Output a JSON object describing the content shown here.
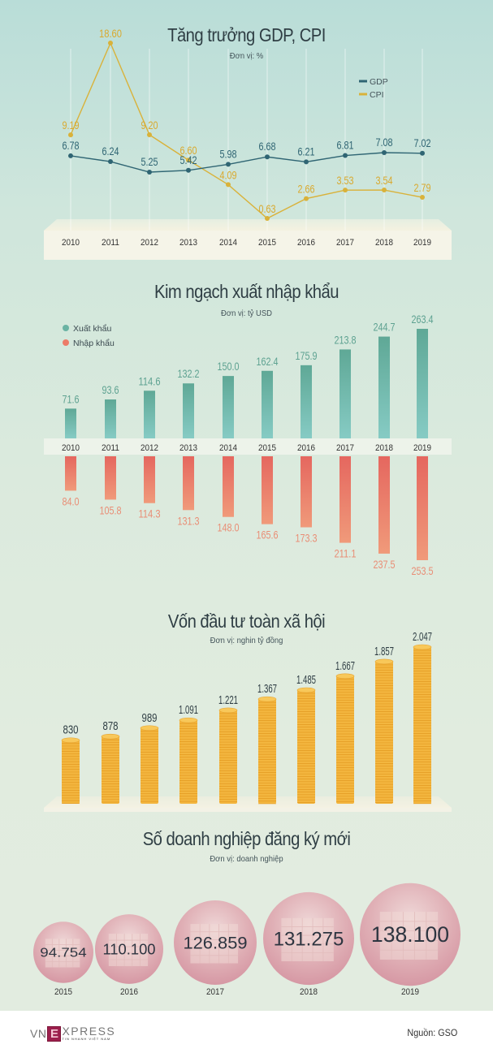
{
  "footer": {
    "logo_vn": "VN",
    "logo_e": "E",
    "logo_xpress": "XPRESS",
    "logo_tagline": "TIN NHANH VIỆT NAM",
    "source": "Nguồn: GSO"
  },
  "colors": {
    "gdp": "#2f6573",
    "cpi": "#d9b23a",
    "export": "#6ab3a3",
    "import": "#ec7b68",
    "coin": "#f3b63f",
    "bubble": "#d9a4ad",
    "text_dark": "#2f3e44"
  },
  "chart_data": [
    {
      "id": "gdp_cpi",
      "type": "line",
      "title": "Tăng trưởng GDP, CPI",
      "unit": "Đơn vị: %",
      "categories": [
        "2010",
        "2011",
        "2012",
        "2013",
        "2014",
        "2015",
        "2016",
        "2017",
        "2018",
        "2019"
      ],
      "legend": [
        "GDP",
        "CPI"
      ],
      "legend_position": "top-right",
      "series": [
        {
          "name": "GDP",
          "values": [
            6.78,
            6.24,
            5.25,
            5.42,
            5.98,
            6.68,
            6.21,
            6.81,
            7.08,
            7.02
          ],
          "labels": [
            "6.78",
            "6.24",
            "5.25",
            "5.42",
            "5.98",
            "6.68",
            "6.21",
            "6.81",
            "7.08",
            "7.02"
          ]
        },
        {
          "name": "CPI",
          "values": [
            9.19,
            18.6,
            9.2,
            6.6,
            4.09,
            0.63,
            2.66,
            3.53,
            3.54,
            2.79
          ],
          "labels": [
            "9.19",
            "18.60",
            "9.20",
            "6.60",
            "4.09",
            "0.63",
            "2.66",
            "3.53",
            "3.54",
            "2.79"
          ]
        }
      ],
      "ylim": [
        0,
        19
      ],
      "grid": false
    },
    {
      "id": "trade",
      "type": "bar",
      "title": "Kim ngạch xuất nhập khẩu",
      "unit": "Đơn vị: tỷ USD",
      "categories": [
        "2010",
        "2011",
        "2012",
        "2013",
        "2014",
        "2015",
        "2016",
        "2017",
        "2018",
        "2019"
      ],
      "legend": [
        "Xuất khẩu",
        "Nhập khẩu"
      ],
      "legend_position": "top-left",
      "series": [
        {
          "name": "Xuất khẩu",
          "values": [
            71.6,
            93.6,
            114.6,
            132.2,
            150.0,
            162.4,
            175.9,
            213.8,
            244.7,
            263.4
          ],
          "labels": [
            "71.6",
            "93.6",
            "114.6",
            "132.2",
            "150.0",
            "162.4",
            "175.9",
            "213.8",
            "244.7",
            "263.4"
          ]
        },
        {
          "name": "Nhập khẩu",
          "values": [
            84.0,
            105.8,
            114.3,
            131.3,
            148.0,
            165.6,
            173.3,
            211.1,
            237.5,
            253.5
          ],
          "labels": [
            "84.0",
            "105.8",
            "114.3",
            "131.3",
            "148.0",
            "165.6",
            "173.3",
            "211.1",
            "237.5",
            "253.5"
          ]
        }
      ],
      "ylim": [
        0,
        270
      ]
    },
    {
      "id": "investment",
      "type": "bar",
      "title": "Vốn đầu tư toàn xã hội",
      "unit": "Đơn vị: nghin tỷ đồng",
      "categories": [
        "2010",
        "2011",
        "2012",
        "2013",
        "2014",
        "2015",
        "2016",
        "2017",
        "2018",
        "2019"
      ],
      "series": [
        {
          "name": "Vốn đầu tư",
          "values": [
            830,
            878,
            989,
            1091,
            1221,
            1367,
            1485,
            1667,
            1857,
            2047
          ],
          "labels": [
            "830",
            "878",
            "989",
            "1.091",
            "1.221",
            "1.367",
            "1.485",
            "1.667",
            "1.857",
            "2.047"
          ]
        }
      ],
      "ylim": [
        0,
        2100
      ]
    },
    {
      "id": "enterprises",
      "type": "bubble",
      "title": "Số doanh nghiệp đăng ký mới",
      "unit": "Đơn vị: doanh nghiệp",
      "categories": [
        "2015",
        "2016",
        "2017",
        "2018",
        "2019"
      ],
      "series": [
        {
          "name": "Doanh nghiệp",
          "values": [
            94754,
            110100,
            126859,
            131275,
            138100
          ],
          "labels": [
            "94.754",
            "110.100",
            "126.859",
            "131.275",
            "138.100"
          ]
        }
      ]
    }
  ]
}
